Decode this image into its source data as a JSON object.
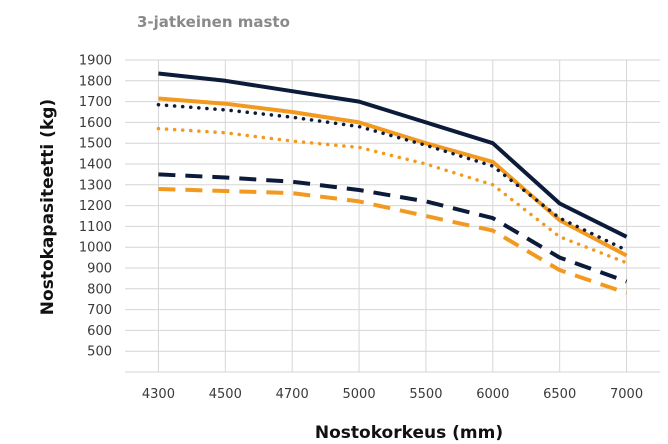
{
  "chart_data": {
    "type": "line",
    "title": "3-jatkeinen masto",
    "xlabel": "Nostokorkeus (mm)",
    "ylabel": "Nostokapasiteetti (kg)",
    "categories": [
      "4300",
      "4500",
      "4700",
      "5000",
      "5500",
      "6000",
      "6500",
      "7000"
    ],
    "ylim": [
      400,
      1900
    ],
    "yticks": [
      500,
      600,
      700,
      800,
      900,
      1000,
      1100,
      1200,
      1300,
      1400,
      1500,
      1600,
      1700,
      1800,
      1900
    ],
    "grid": true,
    "series": [
      {
        "values": [
          1835,
          1800,
          1750,
          1700,
          1600,
          1500,
          1210,
          1050
        ],
        "color": "#0d1b3a",
        "style": "solid"
      },
      {
        "values": [
          1715,
          1690,
          1650,
          1600,
          1500,
          1410,
          1130,
          960
        ],
        "color": "#f29a1f",
        "style": "solid"
      },
      {
        "values": [
          1685,
          1660,
          1625,
          1580,
          1490,
          1390,
          1140,
          985
        ],
        "color": "#0d1b3a",
        "style": "dotted"
      },
      {
        "values": [
          1570,
          1550,
          1510,
          1480,
          1400,
          1300,
          1050,
          925
        ],
        "color": "#f29a1f",
        "style": "dotted"
      },
      {
        "values": [
          1350,
          1335,
          1315,
          1275,
          1220,
          1140,
          950,
          835
        ],
        "color": "#0d1b3a",
        "style": "dashed"
      },
      {
        "values": [
          1280,
          1270,
          1260,
          1220,
          1150,
          1080,
          890,
          780
        ],
        "color": "#f29a1f",
        "style": "dashed"
      }
    ]
  }
}
